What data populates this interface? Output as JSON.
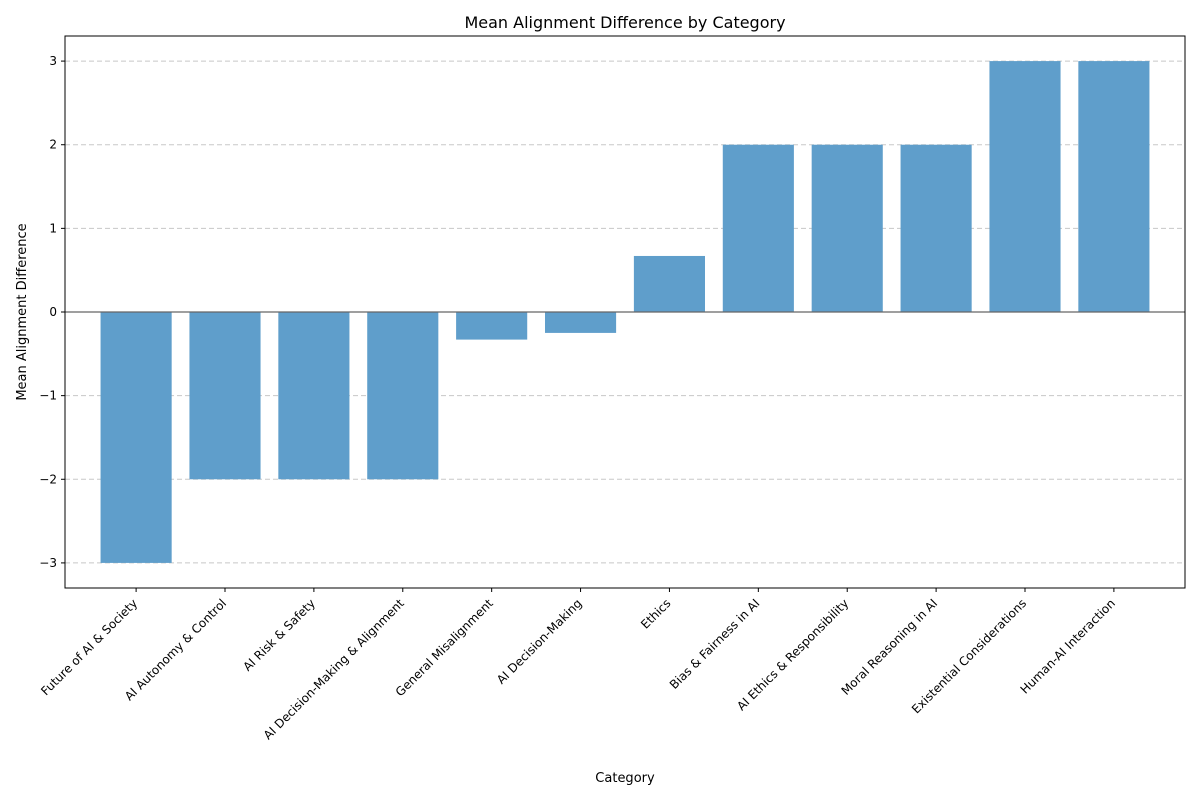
{
  "chart_data": {
    "type": "bar",
    "title": "Mean Alignment Difference by Category",
    "xlabel": "Category",
    "ylabel": "Mean Alignment Difference",
    "categories": [
      "Future of AI & Society",
      "AI Autonomy & Control",
      "AI Risk & Safety",
      "AI Decision-Making & Alignment",
      "General Misalignment",
      "AI Decision-Making",
      "Ethics",
      "Bias & Fairness in AI",
      "AI Ethics & Responsibility",
      "Moral Reasoning in AI",
      "Existential Considerations",
      "Human-AI Interaction"
    ],
    "values": [
      -3,
      -2,
      -2,
      -2,
      -0.33,
      -0.25,
      0.67,
      2,
      2,
      2,
      3,
      3
    ],
    "ylim": [
      -3.3,
      3.3
    ],
    "yticks": [
      -3,
      -2,
      -1,
      0,
      1,
      2,
      3
    ],
    "ytick_labels": [
      "−3",
      "−2",
      "−1",
      "0",
      "1",
      "2",
      "3"
    ],
    "grid": "y-dashed",
    "zero_line": true,
    "bar_color": "#5f9ecb",
    "grid_color": "#c8c8c8",
    "zero_line_color": "#666666"
  }
}
